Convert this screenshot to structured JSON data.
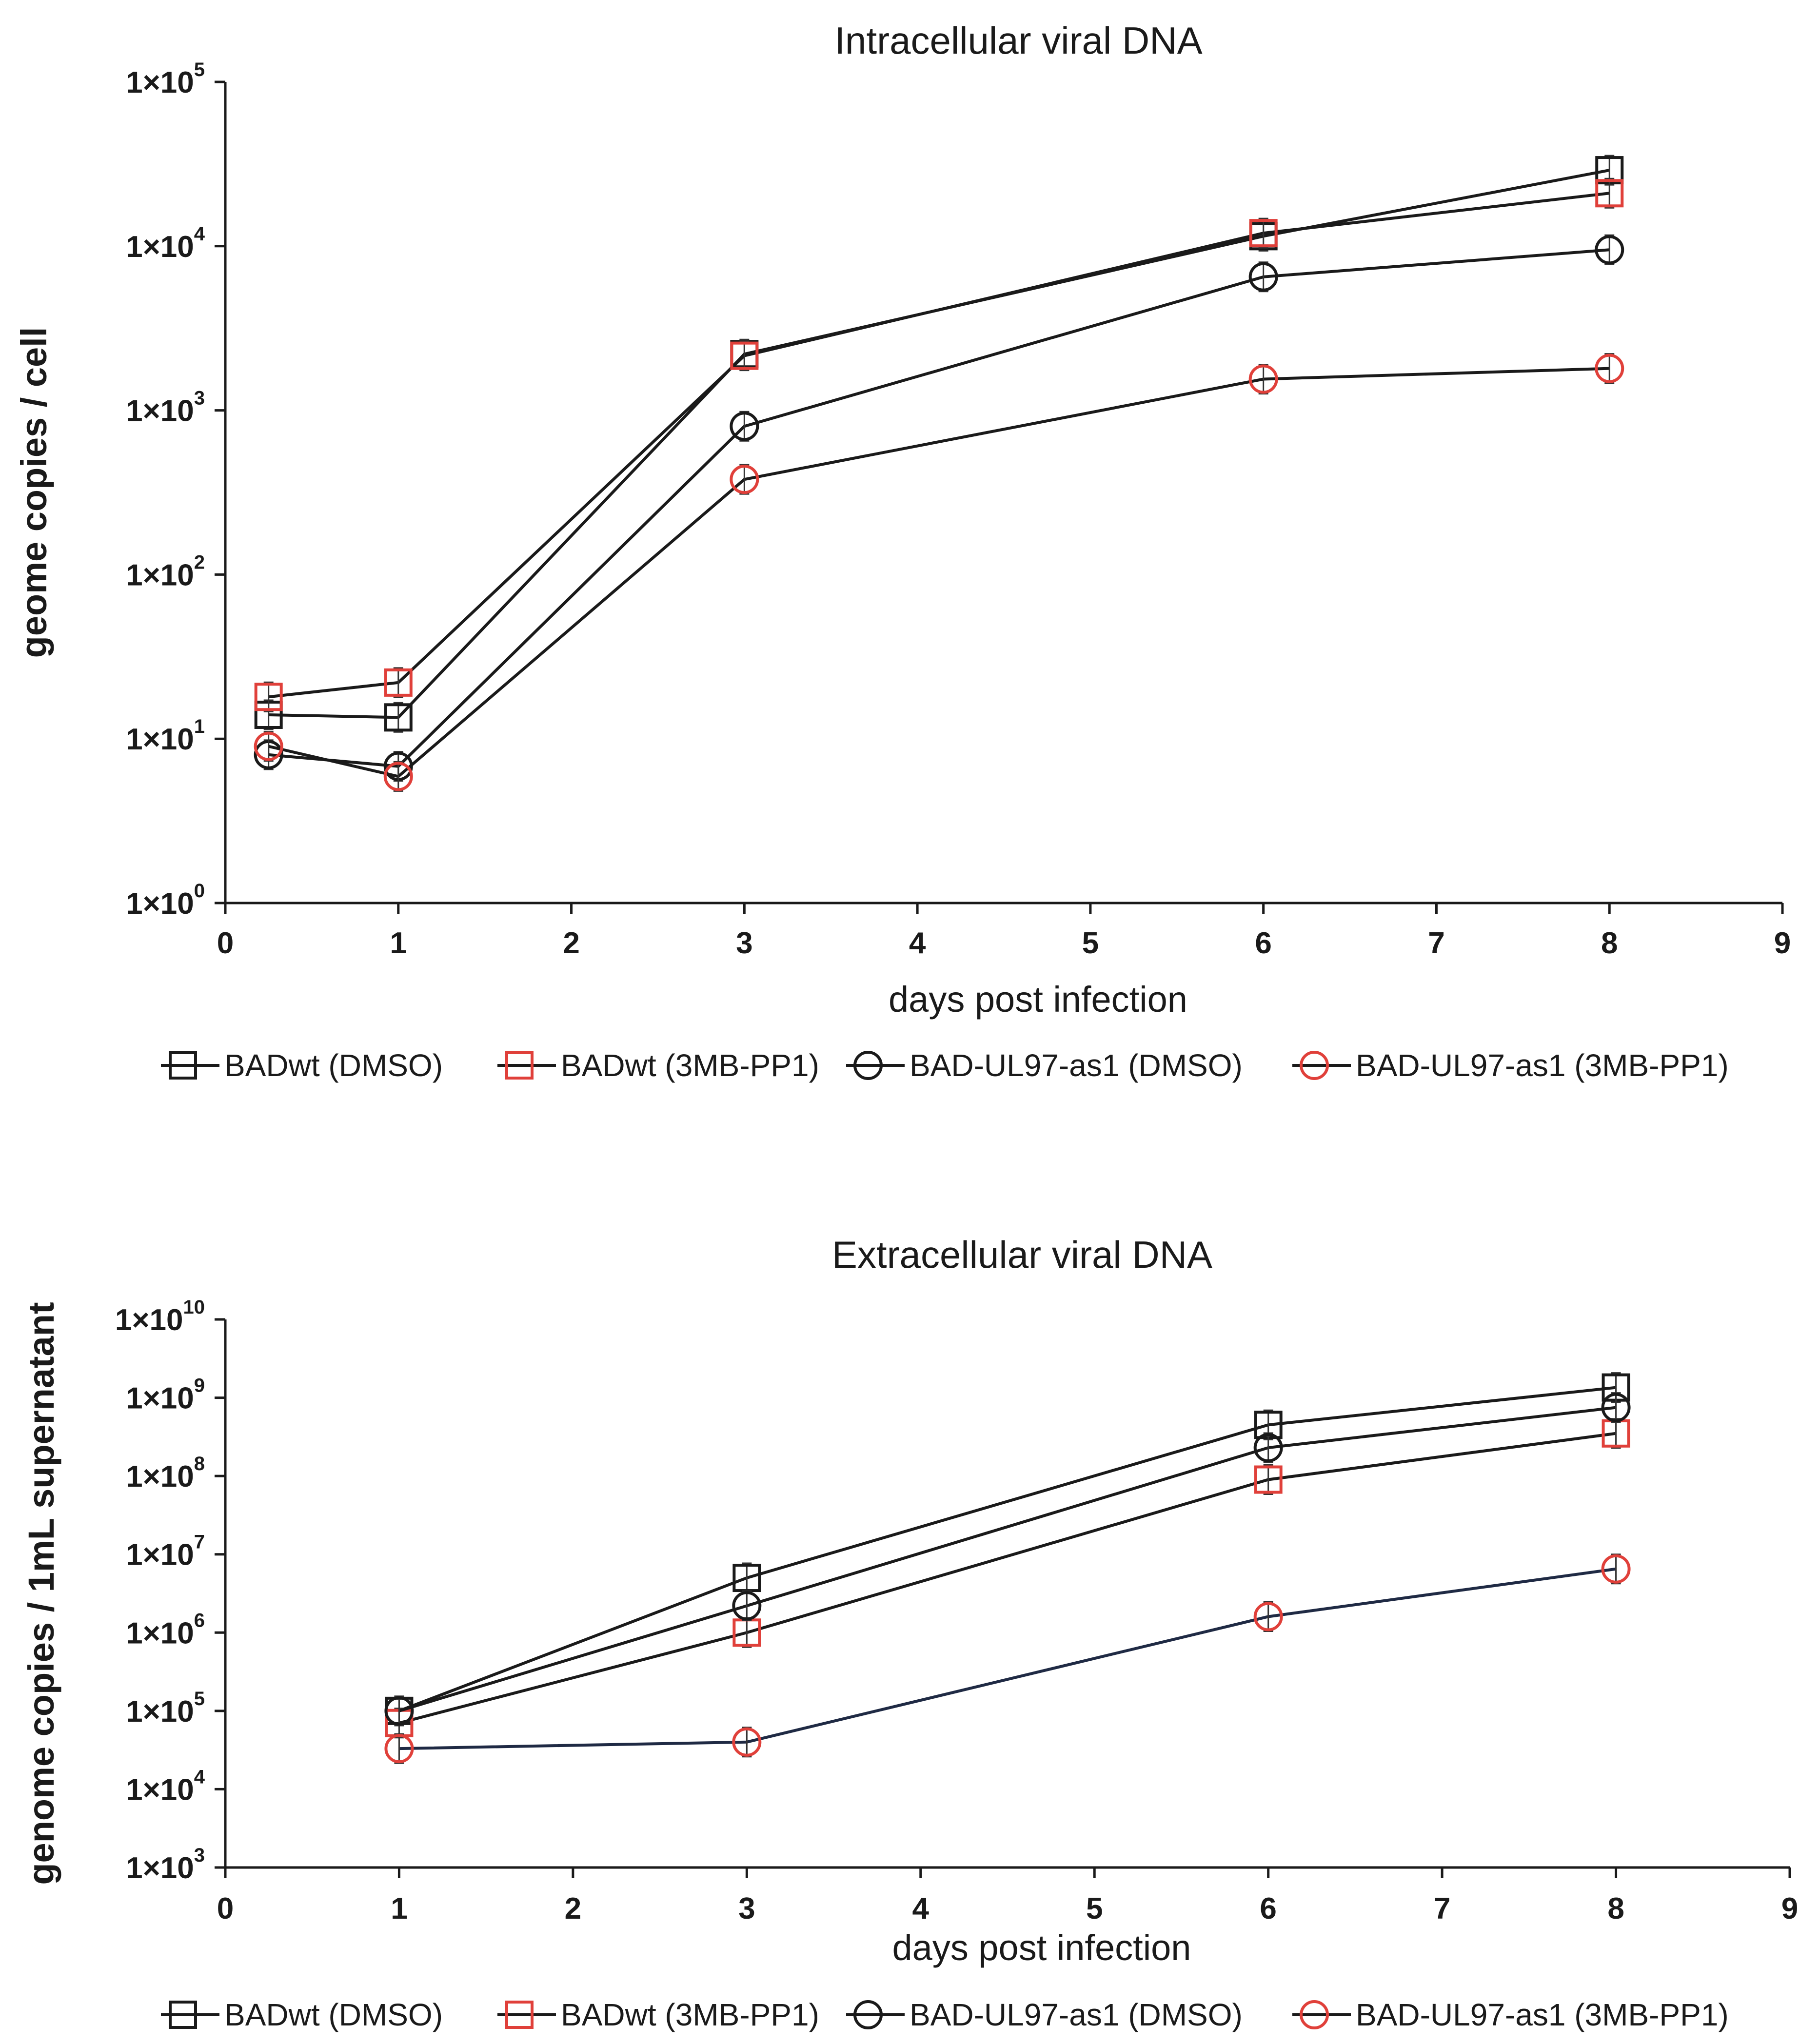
{
  "chart_data": [
    {
      "type": "line",
      "title": "Intracellular viral DNA",
      "xlabel": "days post infection",
      "ylabel": "geome copies / cell",
      "yscale": "log",
      "xlim": [
        0,
        9
      ],
      "ylim": [
        1,
        100000
      ],
      "x_ticks": [
        "0",
        "1",
        "2",
        "3",
        "4",
        "5",
        "6",
        "7",
        "8",
        "9"
      ],
      "y_ticks": [
        {
          "base": "1×10",
          "exp": "0"
        },
        {
          "base": "1×10",
          "exp": "1"
        },
        {
          "base": "1×10",
          "exp": "2"
        },
        {
          "base": "1×10",
          "exp": "3"
        },
        {
          "base": "1×10",
          "exp": "4"
        },
        {
          "base": "1×10",
          "exp": "5"
        }
      ],
      "legend_position": "bottom",
      "series": [
        {
          "name": "BADwt (DMSO)",
          "marker": "square",
          "marker_color": "#1a1a1a",
          "line_color": "#1a1a1a",
          "x": [
            0.25,
            1,
            3,
            6,
            8
          ],
          "values": [
            14,
            13.5,
            2200,
            11500,
            29000
          ]
        },
        {
          "name": "BADwt (3MB-PP1)",
          "marker": "square",
          "marker_color": "#e0403a",
          "line_color": "#1a1a1a",
          "x": [
            0.25,
            1,
            3,
            6,
            8
          ],
          "values": [
            18,
            22,
            2150,
            12000,
            21000
          ]
        },
        {
          "name": "BAD-UL97-as1 (DMSO)",
          "marker": "circle",
          "marker_color": "#1a1a1a",
          "line_color": "#1a1a1a",
          "x": [
            0.25,
            1,
            3,
            6,
            8
          ],
          "values": [
            8,
            6.8,
            800,
            6500,
            9500
          ]
        },
        {
          "name": "BAD-UL97-as1 (3MB-PP1)",
          "marker": "circle",
          "marker_color": "#e0403a",
          "line_color": "#1a1a1a",
          "x": [
            0.25,
            1,
            3,
            6,
            8
          ],
          "values": [
            9,
            5.9,
            380,
            1550,
            1800
          ]
        }
      ]
    },
    {
      "type": "line",
      "title": "Extracellular viral DNA",
      "xlabel": "days post infection",
      "ylabel": "genome copies / 1mL supernatant",
      "yscale": "log",
      "xlim": [
        0,
        9
      ],
      "ylim": [
        1000,
        10000000000
      ],
      "x_ticks": [
        "0",
        "1",
        "2",
        "3",
        "4",
        "5",
        "6",
        "7",
        "8",
        "9"
      ],
      "y_ticks": [
        {
          "base": "1×10",
          "exp": "3"
        },
        {
          "base": "1×10",
          "exp": "4"
        },
        {
          "base": "1×10",
          "exp": "5"
        },
        {
          "base": "1×10",
          "exp": "6"
        },
        {
          "base": "1×10",
          "exp": "7"
        },
        {
          "base": "1×10",
          "exp": "8"
        },
        {
          "base": "1×10",
          "exp": "9"
        },
        {
          "base": "1×10",
          "exp": "10"
        }
      ],
      "legend_position": "bottom",
      "series": [
        {
          "name": "BADwt (DMSO)",
          "marker": "square",
          "marker_color": "#1a1a1a",
          "line_color": "#1a1a1a",
          "x": [
            1,
            3,
            6,
            8
          ],
          "values": [
            100000,
            5000000,
            450000000,
            1350000000
          ]
        },
        {
          "name": "BADwt (3MB-PP1)",
          "marker": "square",
          "marker_color": "#e0403a",
          "line_color": "#1a1a1a",
          "x": [
            1,
            3,
            6,
            8
          ],
          "values": [
            70000,
            1000000,
            90000000,
            350000000
          ]
        },
        {
          "name": "BAD-UL97-as1 (DMSO)",
          "marker": "circle",
          "marker_color": "#1a1a1a",
          "line_color": "#1a1a1a",
          "x": [
            1,
            3,
            6,
            8
          ],
          "values": [
            100000,
            2200000,
            230000000,
            750000000
          ]
        },
        {
          "name": "BAD-UL97-as1 (3MB-PP1)",
          "marker": "circle",
          "marker_color": "#e0403a",
          "line_color": "#1f2a44",
          "x": [
            1,
            3,
            6,
            8
          ],
          "values": [
            33000,
            40000,
            1600000,
            6500000
          ]
        }
      ]
    }
  ]
}
